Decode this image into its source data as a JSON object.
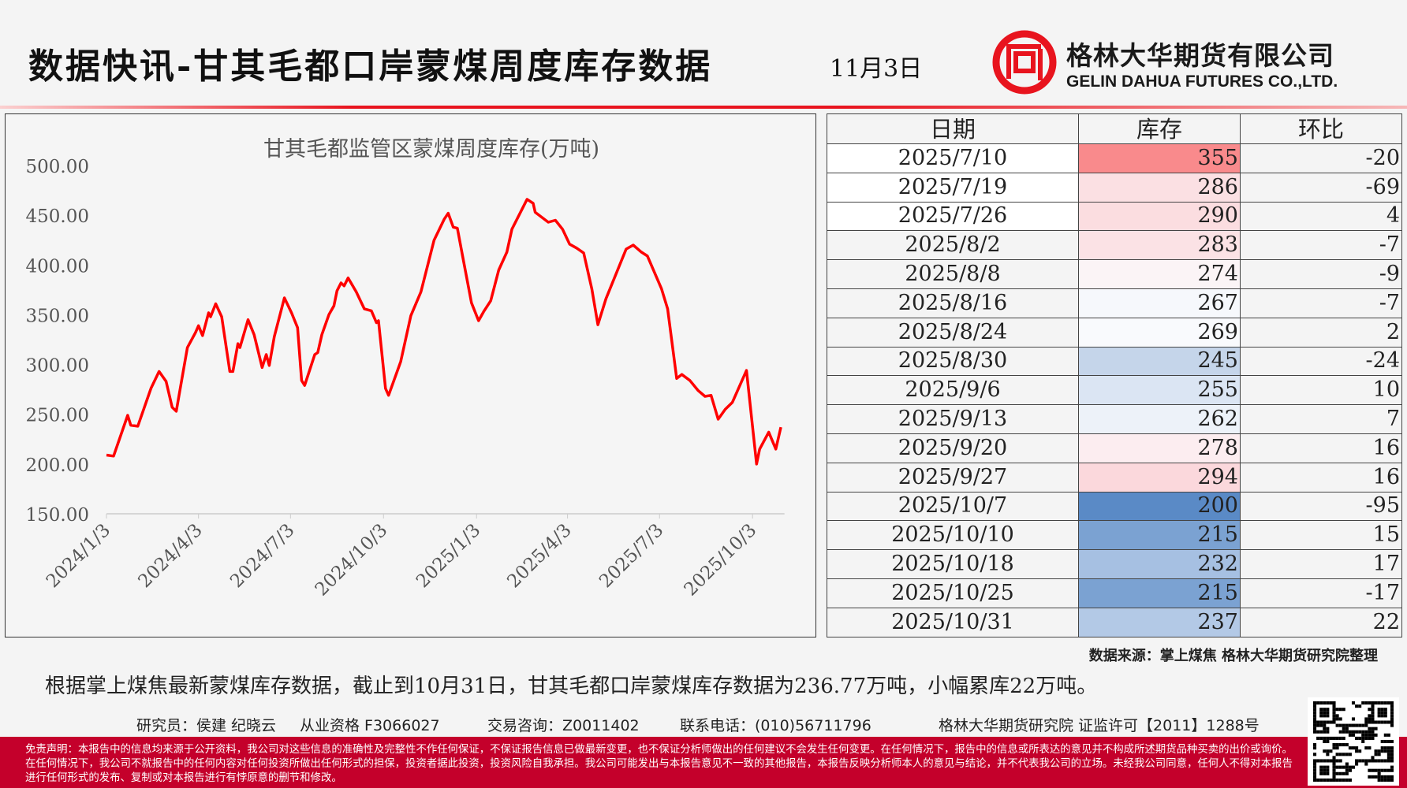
{
  "header": {
    "title": "数据快讯-甘其毛都口岸蒙煤周度库存数据",
    "date": "11月3日",
    "company_cn": "格林大华期货有限公司",
    "company_en": "GELIN DAHUA FUTURES CO.,LTD."
  },
  "chart_data": {
    "type": "line",
    "title": "甘其毛都监管区蒙煤周度库存(万吨)",
    "x_unit": "days since 2024/1/3",
    "ylim": [
      150,
      500
    ],
    "yticks": [
      "500.00",
      "450.00",
      "400.00",
      "350.00",
      "300.00",
      "250.00",
      "200.00",
      "150.00"
    ],
    "ytick_values": [
      500,
      450,
      400,
      350,
      300,
      250,
      200,
      150
    ],
    "xticks": [
      "2024/1/3",
      "2024/4/3",
      "2024/7/3",
      "2024/10/3",
      "2025/1/3",
      "2025/4/3",
      "2025/7/3",
      "2025/10/3"
    ],
    "xtick_days": [
      0,
      91,
      182,
      274,
      366,
      456,
      547,
      639
    ],
    "color": "#ff0000",
    "series": [
      {
        "name": "库存",
        "points": [
          [
            0,
            209
          ],
          [
            7,
            208
          ],
          [
            21,
            249
          ],
          [
            24,
            239
          ],
          [
            31,
            238
          ],
          [
            44,
            276
          ],
          [
            52,
            293
          ],
          [
            59,
            283
          ],
          [
            65,
            257
          ],
          [
            69,
            253
          ],
          [
            75,
            288
          ],
          [
            80,
            317
          ],
          [
            88,
            332
          ],
          [
            91,
            339
          ],
          [
            95,
            329
          ],
          [
            101,
            352
          ],
          [
            103,
            348
          ],
          [
            108,
            361
          ],
          [
            114,
            348
          ],
          [
            122,
            293
          ],
          [
            125,
            293
          ],
          [
            130,
            321
          ],
          [
            132,
            317
          ],
          [
            140,
            345
          ],
          [
            146,
            330
          ],
          [
            154,
            297
          ],
          [
            158,
            310
          ],
          [
            161,
            299
          ],
          [
            166,
            328
          ],
          [
            176,
            367
          ],
          [
            183,
            352
          ],
          [
            189,
            337
          ],
          [
            193,
            284
          ],
          [
            196,
            279
          ],
          [
            206,
            310
          ],
          [
            209,
            312
          ],
          [
            213,
            330
          ],
          [
            220,
            350
          ],
          [
            225,
            359
          ],
          [
            228,
            374
          ],
          [
            232,
            382
          ],
          [
            235,
            379
          ],
          [
            239,
            387
          ],
          [
            247,
            373
          ],
          [
            255,
            356
          ],
          [
            262,
            354
          ],
          [
            267,
            342
          ],
          [
            269,
            344
          ],
          [
            276,
            276
          ],
          [
            279,
            269
          ],
          [
            291,
            303
          ],
          [
            301,
            349
          ],
          [
            311,
            373
          ],
          [
            324,
            425
          ],
          [
            334,
            446
          ],
          [
            338,
            452
          ],
          [
            343,
            438
          ],
          [
            347,
            437
          ],
          [
            353,
            405
          ],
          [
            361,
            362
          ],
          [
            368,
            344
          ],
          [
            373,
            353
          ],
          [
            380,
            364
          ],
          [
            388,
            395
          ],
          [
            396,
            413
          ],
          [
            401,
            436
          ],
          [
            416,
            466
          ],
          [
            422,
            462
          ],
          [
            424,
            453
          ],
          [
            437,
            443
          ],
          [
            444,
            445
          ],
          [
            451,
            436
          ],
          [
            458,
            421
          ],
          [
            465,
            417
          ],
          [
            472,
            412
          ],
          [
            480,
            376
          ],
          [
            486,
            340
          ],
          [
            494,
            366
          ],
          [
            514,
            416
          ],
          [
            521,
            420
          ],
          [
            529,
            413
          ],
          [
            535,
            409
          ],
          [
            549,
            376
          ],
          [
            555,
            356
          ],
          [
            564,
            286
          ],
          [
            569,
            290
          ],
          [
            577,
            284
          ],
          [
            585,
            274
          ],
          [
            592,
            268
          ],
          [
            598,
            269
          ],
          [
            605,
            245
          ],
          [
            612,
            255
          ],
          [
            619,
            262
          ],
          [
            633,
            294
          ],
          [
            643,
            200
          ],
          [
            646,
            215
          ],
          [
            655,
            232
          ],
          [
            662,
            215
          ],
          [
            667,
            237
          ]
        ]
      }
    ]
  },
  "table": {
    "headers": [
      "日期",
      "库存",
      "环比"
    ],
    "rows": [
      {
        "date": "2025/7/10",
        "stock": "355",
        "change": "-20",
        "color": "#f98a8c",
        "date_bg": "#ffffff"
      },
      {
        "date": "2025/7/19",
        "stock": "286",
        "change": "-69",
        "color": "#fbe0e3",
        "date_bg": "#ffffff"
      },
      {
        "date": "2025/7/26",
        "stock": "290",
        "change": "4",
        "color": "#fbdde0",
        "date_bg": "#ffffff"
      },
      {
        "date": "2025/8/2",
        "stock": "283",
        "change": "-7",
        "color": "#fbe2e5",
        "date_bg": "#f4f4f4"
      },
      {
        "date": "2025/8/8",
        "stock": "274",
        "change": "-9",
        "color": "#fbf4f6",
        "date_bg": "#f4f4f4"
      },
      {
        "date": "2025/8/16",
        "stock": "267",
        "change": "-7",
        "color": "#f6f8fc",
        "date_bg": "#f4f4f4"
      },
      {
        "date": "2025/8/24",
        "stock": "269",
        "change": "2",
        "color": "#f9fafd",
        "date_bg": "#f4f4f4"
      },
      {
        "date": "2025/8/30",
        "stock": "245",
        "change": "-24",
        "color": "#c5d5ea",
        "date_bg": "#f4f4f4"
      },
      {
        "date": "2025/9/6",
        "stock": "255",
        "change": "10",
        "color": "#dbe5f3",
        "date_bg": "#f4f4f4"
      },
      {
        "date": "2025/9/13",
        "stock": "262",
        "change": "7",
        "color": "#edf2f9",
        "date_bg": "#f4f4f4"
      },
      {
        "date": "2025/9/20",
        "stock": "278",
        "change": "16",
        "color": "#fcedf0",
        "date_bg": "#f4f4f4"
      },
      {
        "date": "2025/9/27",
        "stock": "294",
        "change": "16",
        "color": "#fbd8dc",
        "date_bg": "#f4f4f4"
      },
      {
        "date": "2025/10/7",
        "stock": "200",
        "change": "-95",
        "color": "#5a8ac6",
        "date_bg": "#f4f4f4"
      },
      {
        "date": "2025/10/10",
        "stock": "215",
        "change": "15",
        "color": "#7ba2d2",
        "date_bg": "#f4f4f4"
      },
      {
        "date": "2025/10/18",
        "stock": "232",
        "change": "17",
        "color": "#a6c0e2",
        "date_bg": "#f4f4f4"
      },
      {
        "date": "2025/10/25",
        "stock": "215",
        "change": "-17",
        "color": "#7ba2d2",
        "date_bg": "#f4f4f4"
      },
      {
        "date": "2025/10/31",
        "stock": "237",
        "change": "22",
        "color": "#b3c9e6",
        "date_bg": "#f4f4f4"
      }
    ]
  },
  "source": "数据来源：掌上煤焦  格林大华期货研究院整理",
  "summary": "根据掌上煤焦最新蒙煤库存数据，截止到10月31日，甘其毛都口岸蒙煤库存数据为236.77万吨，小幅累库22万吨。",
  "researcher": {
    "names": "研究员：侯建 纪晓云",
    "qualification": "从业资格 F3066027",
    "consulting": "交易咨询：Z0011402",
    "phone": "联系电话：(010)56711796",
    "license": "格林大华期货研究院  证监许可【2011】1288号"
  },
  "disclaimer": "免责声明：本报告中的信息均来源于公开资料，我公司对这些信息的准确性及完整性不作任何保证，不保证报告信息已做最新变更，也不保证分析师做出的任何建议不会发生任何变更。在任何情况下，报告中的信息或所表达的意见并不构成所述期货品种买卖的出价或询价。在任何情况下，我公司不就报告中的任何内容对任何投资所做出任何形式的担保，投资者据此投资，投资风险自我承担。我公司可能发出与本报告意见不一致的其他报告，本报告反映分析师本人的意见与结论，并不代表我公司的立场。未经我公司同意，任何人不得对本报告进行任何形式的发布、复制或对本报告进行有悖原意的删节和修改。",
  "colors": {
    "brand_red": "#e8141e",
    "footer_red": "#c4002b",
    "line": "#ff0000"
  }
}
